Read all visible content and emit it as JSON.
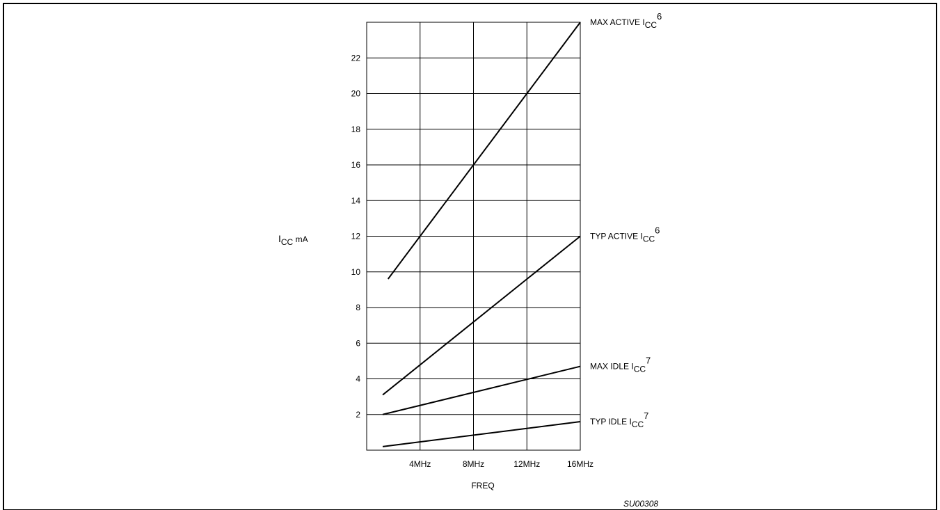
{
  "chart_data": {
    "type": "line",
    "ylabel": {
      "main": "I",
      "sub": "CC",
      "unit": " mA"
    },
    "xlabel": "FREQ",
    "figure_id": "SU00308",
    "xlim": [
      0,
      16
    ],
    "ylim": [
      0,
      24
    ],
    "x_ticks": [
      {
        "value": 4,
        "label": "4MHz"
      },
      {
        "value": 8,
        "label": "8MHz"
      },
      {
        "value": 12,
        "label": "12MHz"
      },
      {
        "value": 16,
        "label": "16MHz"
      }
    ],
    "y_ticks": [
      2,
      4,
      6,
      8,
      10,
      12,
      14,
      16,
      18,
      20,
      22
    ],
    "grid": true,
    "series": [
      {
        "name": "MAX ACTIVE ICC",
        "label": {
          "prefix": "MAX ACTIVE I",
          "sub": "CC",
          "sup": "6"
        },
        "x": [
          1.6,
          16
        ],
        "y": [
          9.6,
          24
        ]
      },
      {
        "name": "TYP ACTIVE ICC",
        "label": {
          "prefix": "TYP ACTIVE I",
          "sub": "CC",
          "sup": "6"
        },
        "x": [
          1.2,
          16
        ],
        "y": [
          3.1,
          12
        ]
      },
      {
        "name": "MAX IDLE ICC",
        "label": {
          "prefix": "MAX IDLE I",
          "sub": "CC",
          "sup": "7"
        },
        "x": [
          1.2,
          16
        ],
        "y": [
          2.0,
          4.7
        ]
      },
      {
        "name": "TYP IDLE ICC",
        "label": {
          "prefix": "TYP IDLE I",
          "sub": "CC",
          "sup": "7"
        },
        "x": [
          1.2,
          16
        ],
        "y": [
          0.2,
          1.6
        ]
      }
    ]
  }
}
